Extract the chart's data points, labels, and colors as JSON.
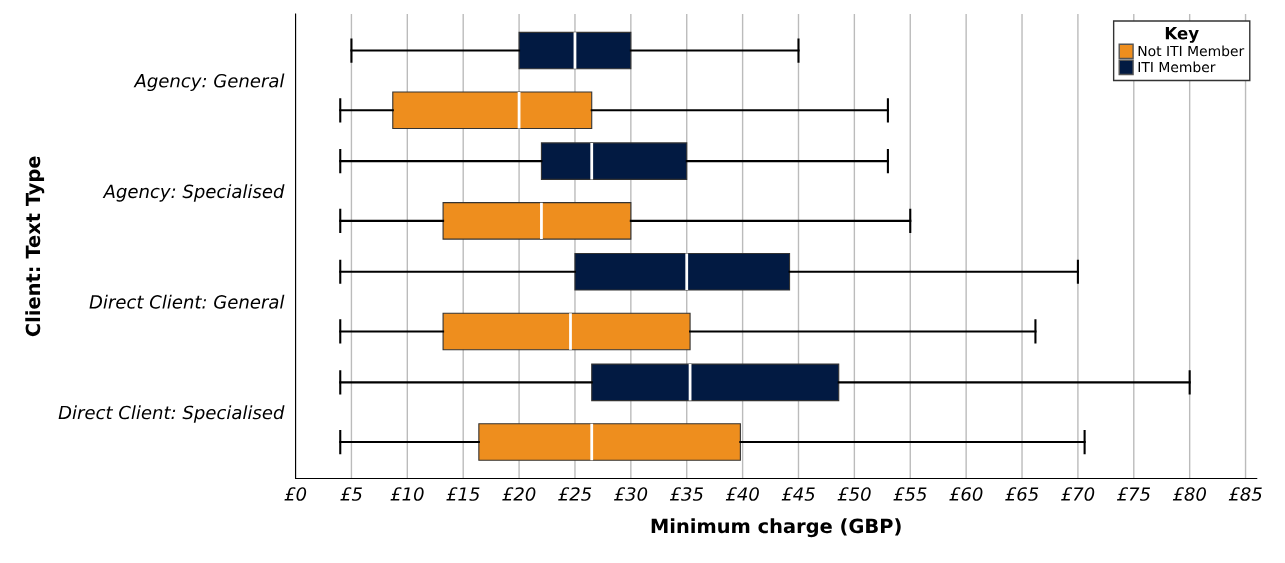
{
  "chart_data": {
    "type": "box",
    "xlabel": "Minimum charge (GBP)",
    "ylabel": "Client: Text Type",
    "legend_title": "Key",
    "orientation": "horizontal",
    "categories": [
      "Agency: General",
      "Agency: Specialised",
      "Direct Client: General",
      "Direct Client: Specialised"
    ],
    "series": [
      {
        "name": "Not ITI Member",
        "color": "#ee8e1e",
        "boxes": [
          {
            "low": 4,
            "q1": 8.7,
            "median": 20,
            "q3": 26.5,
            "high": 53
          },
          {
            "low": 4,
            "q1": 13.2,
            "median": 22,
            "q3": 30,
            "high": 55
          },
          {
            "low": 4,
            "q1": 13.2,
            "median": 24.6,
            "q3": 35.3,
            "high": 66.2
          },
          {
            "low": 4,
            "q1": 16.4,
            "median": 26.5,
            "q3": 39.8,
            "high": 70.6
          }
        ]
      },
      {
        "name": "ITI Member",
        "color": "#021a42",
        "boxes": [
          {
            "low": 5,
            "q1": 20,
            "median": 25,
            "q3": 30,
            "high": 45
          },
          {
            "low": 4,
            "q1": 22,
            "median": 26.5,
            "q3": 35,
            "high": 53
          },
          {
            "low": 4,
            "q1": 25,
            "median": 35,
            "q3": 44.2,
            "high": 70
          },
          {
            "low": 4,
            "q1": 26.5,
            "median": 35.3,
            "q3": 48.6,
            "high": 80
          }
        ]
      }
    ],
    "xlim": [
      0,
      86
    ],
    "xticks": [
      {
        "value": 0,
        "label": "£0"
      },
      {
        "value": 5,
        "label": "£5"
      },
      {
        "value": 10,
        "label": "£10"
      },
      {
        "value": 15,
        "label": "£15"
      },
      {
        "value": 20,
        "label": "£20"
      },
      {
        "value": 25,
        "label": "£25"
      },
      {
        "value": 30,
        "label": "£30"
      },
      {
        "value": 35,
        "label": "£35"
      },
      {
        "value": 40,
        "label": "£40"
      },
      {
        "value": 45,
        "label": "£45"
      },
      {
        "value": 50,
        "label": "£50"
      },
      {
        "value": 55,
        "label": "£55"
      },
      {
        "value": 60,
        "label": "£60"
      },
      {
        "value": 65,
        "label": "£65"
      },
      {
        "value": 70,
        "label": "£70"
      },
      {
        "value": 75,
        "label": "£75"
      },
      {
        "value": 80,
        "label": "£80"
      },
      {
        "value": 85,
        "label": "£85"
      }
    ],
    "grid": "x",
    "legend": "top right"
  }
}
